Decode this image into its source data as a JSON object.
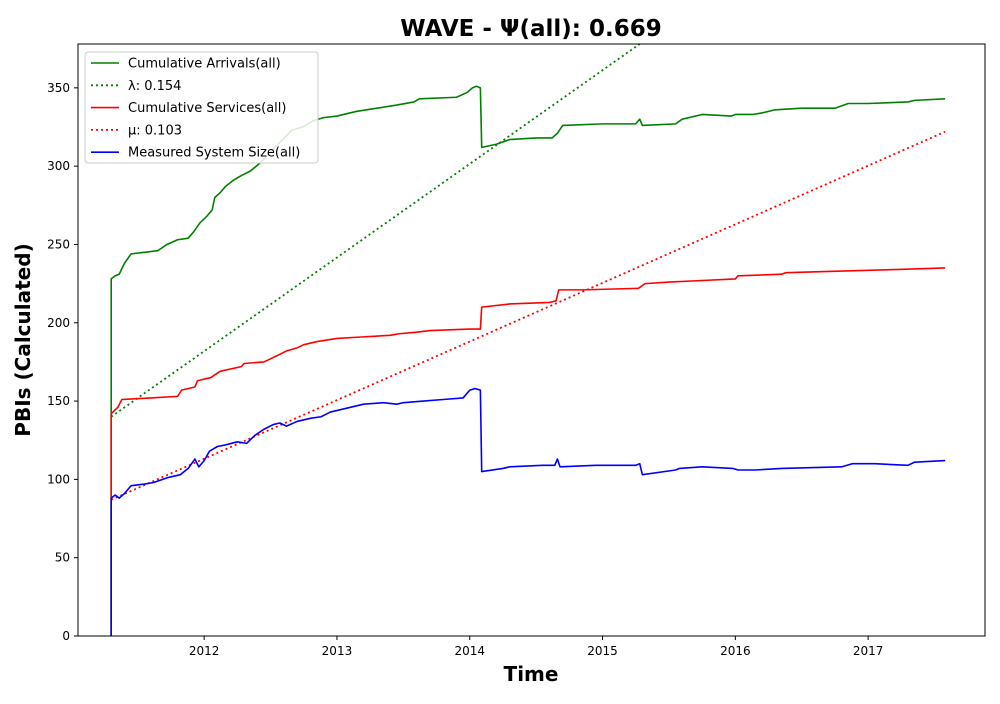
{
  "chart_data": {
    "type": "line",
    "title": "WAVE -  Ψ(all): 0.669",
    "xlabel": "Time",
    "ylabel": "PBIs (Calculated)",
    "xlim": [
      2011.05,
      2017.88
    ],
    "ylim": [
      0,
      378
    ],
    "xticks": [
      2012,
      2013,
      2014,
      2015,
      2016,
      2017
    ],
    "yticks": [
      0,
      50,
      100,
      150,
      200,
      250,
      300,
      350
    ],
    "grid": false,
    "legend_position": "upper-left",
    "series": [
      {
        "name": "Cumulative Arrivals(all)",
        "color": "#008000",
        "style": "solid",
        "points": [
          [
            2011.3,
            0
          ],
          [
            2011.3,
            228
          ],
          [
            2011.33,
            230
          ],
          [
            2011.36,
            231
          ],
          [
            2011.4,
            238
          ],
          [
            2011.45,
            244
          ],
          [
            2011.55,
            245
          ],
          [
            2011.65,
            246
          ],
          [
            2011.72,
            250
          ],
          [
            2011.8,
            253
          ],
          [
            2011.88,
            254
          ],
          [
            2011.92,
            258
          ],
          [
            2011.97,
            264
          ],
          [
            2012.02,
            268
          ],
          [
            2012.06,
            272
          ],
          [
            2012.08,
            280
          ],
          [
            2012.12,
            283
          ],
          [
            2012.16,
            287
          ],
          [
            2012.22,
            291
          ],
          [
            2012.28,
            294
          ],
          [
            2012.35,
            297
          ],
          [
            2012.42,
            302
          ],
          [
            2012.5,
            309
          ],
          [
            2012.58,
            316
          ],
          [
            2012.66,
            323
          ],
          [
            2012.74,
            325
          ],
          [
            2012.82,
            329
          ],
          [
            2012.9,
            331
          ],
          [
            2013.0,
            332
          ],
          [
            2013.15,
            335
          ],
          [
            2013.3,
            337
          ],
          [
            2013.45,
            339
          ],
          [
            2013.58,
            341
          ],
          [
            2013.62,
            343
          ],
          [
            2013.9,
            344
          ],
          [
            2013.98,
            347
          ],
          [
            2014.02,
            350
          ],
          [
            2014.05,
            351
          ],
          [
            2014.08,
            350
          ],
          [
            2014.09,
            312
          ],
          [
            2014.2,
            314
          ],
          [
            2014.3,
            317
          ],
          [
            2014.5,
            318
          ],
          [
            2014.62,
            318
          ],
          [
            2014.66,
            321
          ],
          [
            2014.7,
            326
          ],
          [
            2015.0,
            327
          ],
          [
            2015.25,
            327
          ],
          [
            2015.28,
            330
          ],
          [
            2015.3,
            326
          ],
          [
            2015.55,
            327
          ],
          [
            2015.6,
            330
          ],
          [
            2015.75,
            333
          ],
          [
            2015.97,
            332
          ],
          [
            2016.0,
            333
          ],
          [
            2016.13,
            333
          ],
          [
            2016.2,
            334
          ],
          [
            2016.3,
            336
          ],
          [
            2016.5,
            337
          ],
          [
            2016.75,
            337
          ],
          [
            2016.85,
            340
          ],
          [
            2017.0,
            340
          ],
          [
            2017.3,
            341
          ],
          [
            2017.35,
            342
          ],
          [
            2017.58,
            343
          ]
        ]
      },
      {
        "name": "λ: 0.154",
        "color": "#008000",
        "style": "dotted",
        "points": [
          [
            2011.3,
            140
          ],
          [
            2015.28,
            378
          ]
        ]
      },
      {
        "name": "Cumulative Services(all)",
        "color": "#ff0000",
        "style": "solid",
        "points": [
          [
            2011.3,
            0
          ],
          [
            2011.3,
            142
          ],
          [
            2011.35,
            146
          ],
          [
            2011.38,
            151
          ],
          [
            2011.6,
            152
          ],
          [
            2011.8,
            153
          ],
          [
            2011.83,
            157
          ],
          [
            2011.93,
            159
          ],
          [
            2011.95,
            163
          ],
          [
            2012.05,
            165
          ],
          [
            2012.12,
            169
          ],
          [
            2012.28,
            172
          ],
          [
            2012.3,
            174
          ],
          [
            2012.45,
            175
          ],
          [
            2012.5,
            177
          ],
          [
            2012.55,
            179
          ],
          [
            2012.62,
            182
          ],
          [
            2012.7,
            184
          ],
          [
            2012.75,
            186
          ],
          [
            2012.85,
            188
          ],
          [
            2013.0,
            190
          ],
          [
            2013.2,
            191
          ],
          [
            2013.4,
            192
          ],
          [
            2013.47,
            193
          ],
          [
            2013.6,
            194
          ],
          [
            2013.7,
            195
          ],
          [
            2014.0,
            196
          ],
          [
            2014.08,
            196
          ],
          [
            2014.09,
            210
          ],
          [
            2014.3,
            212
          ],
          [
            2014.6,
            213
          ],
          [
            2014.65,
            214
          ],
          [
            2014.67,
            221
          ],
          [
            2014.85,
            221
          ],
          [
            2015.27,
            222
          ],
          [
            2015.32,
            225
          ],
          [
            2015.5,
            226
          ],
          [
            2015.75,
            227
          ],
          [
            2016.0,
            228
          ],
          [
            2016.02,
            230
          ],
          [
            2016.35,
            231
          ],
          [
            2016.38,
            232
          ],
          [
            2016.8,
            233
          ],
          [
            2017.2,
            234
          ],
          [
            2017.58,
            235
          ]
        ]
      },
      {
        "name": "μ: 0.103",
        "color": "#ff0000",
        "style": "dotted",
        "points": [
          [
            2011.3,
            87
          ],
          [
            2017.58,
            322
          ]
        ]
      },
      {
        "name": "Measured System Size(all)",
        "color": "#0000ff",
        "style": "solid",
        "points": [
          [
            2011.3,
            0
          ],
          [
            2011.3,
            88
          ],
          [
            2011.33,
            90
          ],
          [
            2011.36,
            88
          ],
          [
            2011.4,
            91
          ],
          [
            2011.45,
            96
          ],
          [
            2011.55,
            97
          ],
          [
            2011.62,
            98
          ],
          [
            2011.72,
            101
          ],
          [
            2011.82,
            103
          ],
          [
            2011.88,
            107
          ],
          [
            2011.93,
            113
          ],
          [
            2011.96,
            108
          ],
          [
            2012.0,
            112
          ],
          [
            2012.04,
            118
          ],
          [
            2012.1,
            121
          ],
          [
            2012.16,
            122
          ],
          [
            2012.25,
            124
          ],
          [
            2012.32,
            123
          ],
          [
            2012.38,
            128
          ],
          [
            2012.45,
            132
          ],
          [
            2012.52,
            135
          ],
          [
            2012.57,
            136
          ],
          [
            2012.62,
            134
          ],
          [
            2012.7,
            137
          ],
          [
            2012.8,
            139
          ],
          [
            2012.88,
            140
          ],
          [
            2012.95,
            143
          ],
          [
            2013.05,
            145
          ],
          [
            2013.2,
            148
          ],
          [
            2013.35,
            149
          ],
          [
            2013.45,
            148
          ],
          [
            2013.5,
            149
          ],
          [
            2013.65,
            150
          ],
          [
            2013.8,
            151
          ],
          [
            2013.95,
            152
          ],
          [
            2014.0,
            157
          ],
          [
            2014.04,
            158
          ],
          [
            2014.08,
            157
          ],
          [
            2014.09,
            105
          ],
          [
            2014.25,
            107
          ],
          [
            2014.3,
            108
          ],
          [
            2014.55,
            109
          ],
          [
            2014.64,
            109
          ],
          [
            2014.66,
            113
          ],
          [
            2014.68,
            108
          ],
          [
            2014.95,
            109
          ],
          [
            2015.25,
            109
          ],
          [
            2015.28,
            110
          ],
          [
            2015.3,
            103
          ],
          [
            2015.55,
            106
          ],
          [
            2015.58,
            107
          ],
          [
            2015.75,
            108
          ],
          [
            2015.98,
            107
          ],
          [
            2016.02,
            106
          ],
          [
            2016.15,
            106
          ],
          [
            2016.35,
            107
          ],
          [
            2016.8,
            108
          ],
          [
            2016.88,
            110
          ],
          [
            2017.05,
            110
          ],
          [
            2017.3,
            109
          ],
          [
            2017.35,
            111
          ],
          [
            2017.58,
            112
          ]
        ]
      }
    ]
  }
}
